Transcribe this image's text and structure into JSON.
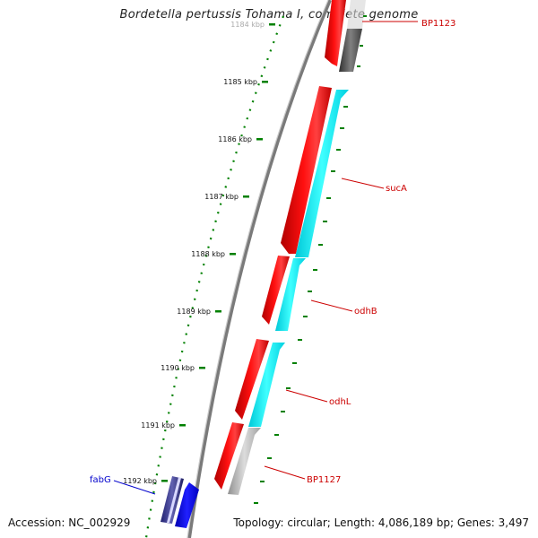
{
  "title": "Bordetella pertussis Tohama I, complete genome",
  "footer": {
    "accession": "Accession: NC_002929",
    "summary": "Topology: circular; Length: 4,086,189 bp; Genes: 3,497"
  },
  "scale_labels": [
    "1184 kbp",
    "1185 kbp",
    "1186 kbp",
    "1187 kbp",
    "1188 kbp",
    "1189 kbp",
    "1190 kbp",
    "1191 kbp",
    "1192 kbp"
  ],
  "gene_labels": {
    "BP1123": "BP1123",
    "sucA": "sucA",
    "odhB": "odhB",
    "odhL": "odhL",
    "BP1127": "BP1127",
    "fabG": "fabG"
  },
  "colors": {
    "forward_cds": "#ff0000",
    "reverse_cds_annotated": "#00ffff",
    "reverse_cds_other": "#c0c0c0",
    "other_strand_blue": "#0000ff",
    "backbone": "#808080",
    "ticks": "#008000",
    "label_red": "#cc0000",
    "label_blue": "#0000cc"
  }
}
